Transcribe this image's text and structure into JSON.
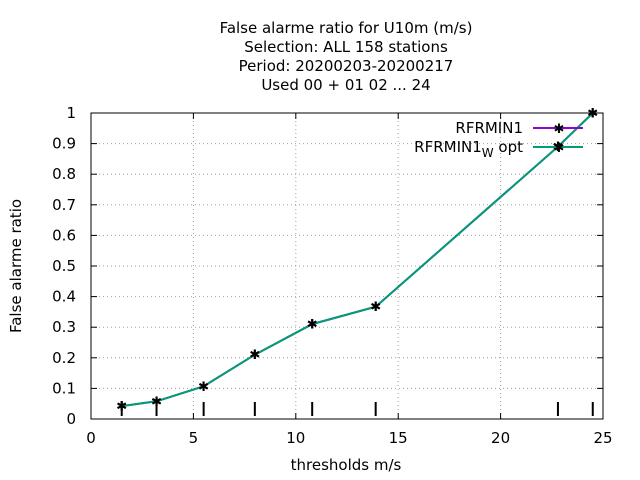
{
  "chart_data": {
    "type": "line",
    "title_lines": [
      "False alarme ratio  for U10m (m/s)",
      "Selection: ALL    158 stations",
      "Period: 20200203-20200217",
      "Used  00 + 01 02 ... 24"
    ],
    "xlabel": "thresholds m/s",
    "ylabel": "False alarme ratio",
    "xlim": [
      0,
      25
    ],
    "ylim": [
      0,
      1
    ],
    "xticks": [
      "0",
      "5",
      "10",
      "15",
      "20",
      "25"
    ],
    "yticks": [
      "0",
      "0.1",
      "0.2",
      "0.3",
      "0.4",
      "0.5",
      "0.6",
      "0.7",
      "0.8",
      "0.9",
      "1"
    ],
    "grid": true,
    "legend_position": "top-right",
    "threshold_markers": [
      1.5,
      3.2,
      5.5,
      8.0,
      10.8,
      13.9,
      22.8,
      24.5
    ],
    "series": [
      {
        "name": "RFRMIN1",
        "color": "#9400d3",
        "x": [
          1.5,
          3.2,
          5.5,
          8.0,
          10.8,
          13.9,
          22.8,
          24.5
        ],
        "y": [
          0.042,
          0.058,
          0.107,
          0.21,
          0.31,
          0.367,
          0.89,
          1.0
        ]
      },
      {
        "name_main": "RFRMIN1",
        "name_sub": "W",
        "name_suffix": " opt",
        "color": "#009e73",
        "x": [
          1.5,
          3.2,
          5.5,
          8.0,
          10.8,
          13.9,
          22.8,
          24.5
        ],
        "y": [
          0.042,
          0.058,
          0.107,
          0.21,
          0.31,
          0.367,
          0.89,
          1.0
        ]
      }
    ]
  }
}
